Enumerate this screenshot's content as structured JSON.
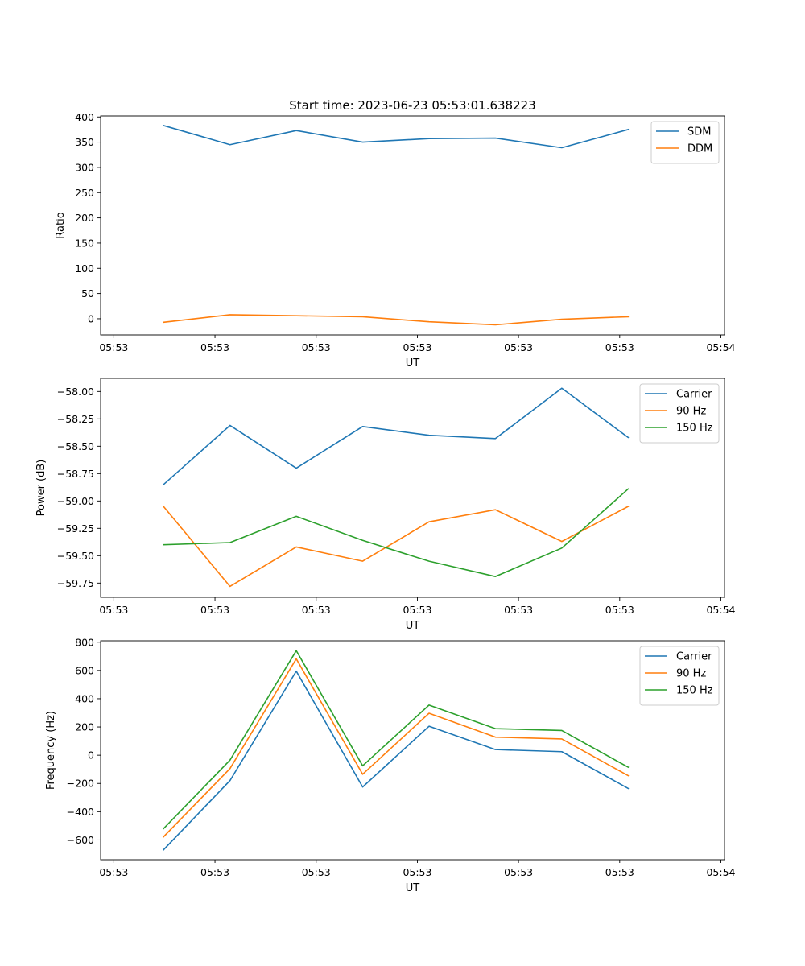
{
  "figure": {
    "title": "Start time: 2023-06-23 05:53:01.638223"
  },
  "chart_data": [
    {
      "type": "line",
      "xlabel": "UT",
      "ylabel": "Ratio",
      "x_tick_labels": [
        "05:53",
        "05:53",
        "05:53",
        "05:53",
        "05:53",
        "05:53",
        "05:54"
      ],
      "ylim": [
        -32,
        402
      ],
      "y_ticks": [
        0,
        50,
        100,
        150,
        200,
        250,
        300,
        350,
        400
      ],
      "grid": false,
      "legend_position": "top-right",
      "series": [
        {
          "name": "SDM",
          "color": "#1f77b4",
          "values": [
            383,
            345,
            373,
            350,
            357,
            358,
            339,
            375
          ]
        },
        {
          "name": "DDM",
          "color": "#ff7f0e",
          "values": [
            -7,
            8,
            6,
            4,
            -6,
            -12,
            -1,
            4
          ]
        }
      ]
    },
    {
      "type": "line",
      "xlabel": "UT",
      "ylabel": "Power (dB)",
      "x_tick_labels": [
        "05:53",
        "05:53",
        "05:53",
        "05:53",
        "05:53",
        "05:53",
        "05:54"
      ],
      "ylim": [
        -59.88,
        -57.88
      ],
      "y_ticks": [
        -59.75,
        -59.5,
        -59.25,
        -59.0,
        -58.75,
        -58.5,
        -58.25,
        -58.0
      ],
      "y_tick_labels": [
        "−59.75",
        "−59.50",
        "−59.25",
        "−59.00",
        "−58.75",
        "−58.50",
        "−58.25",
        "−58.00"
      ],
      "grid": false,
      "legend_position": "top-right",
      "series": [
        {
          "name": "Carrier",
          "color": "#1f77b4",
          "values": [
            -58.85,
            -58.31,
            -58.7,
            -58.32,
            -58.4,
            -58.43,
            -57.97,
            -58.42
          ]
        },
        {
          "name": "90 Hz",
          "color": "#ff7f0e",
          "values": [
            -59.05,
            -59.78,
            -59.42,
            -59.55,
            -59.19,
            -59.08,
            -59.37,
            -59.05
          ]
        },
        {
          "name": "150 Hz",
          "color": "#2ca02c",
          "values": [
            -59.4,
            -59.38,
            -59.14,
            -59.36,
            -59.55,
            -59.69,
            -59.43,
            -58.89
          ]
        }
      ]
    },
    {
      "type": "line",
      "xlabel": "UT",
      "ylabel": "Frequency (Hz)",
      "x_tick_labels": [
        "05:53",
        "05:53",
        "05:53",
        "05:53",
        "05:53",
        "05:53",
        "05:54"
      ],
      "ylim": [
        -740,
        810
      ],
      "y_ticks": [
        -600,
        -400,
        -200,
        0,
        200,
        400,
        600,
        800
      ],
      "y_tick_labels": [
        "−600",
        "−400",
        "−200",
        "0",
        "200",
        "400",
        "600",
        "800"
      ],
      "grid": false,
      "legend_position": "top-right",
      "series": [
        {
          "name": "Carrier",
          "color": "#1f77b4",
          "values": [
            -670,
            -180,
            595,
            -225,
            205,
            40,
            25,
            -235
          ]
        },
        {
          "name": "90 Hz",
          "color": "#ff7f0e",
          "values": [
            -578,
            -95,
            682,
            -135,
            297,
            128,
            115,
            -145
          ]
        },
        {
          "name": "150 Hz",
          "color": "#2ca02c",
          "values": [
            -520,
            -35,
            740,
            -75,
            355,
            188,
            175,
            -85
          ]
        }
      ]
    }
  ]
}
